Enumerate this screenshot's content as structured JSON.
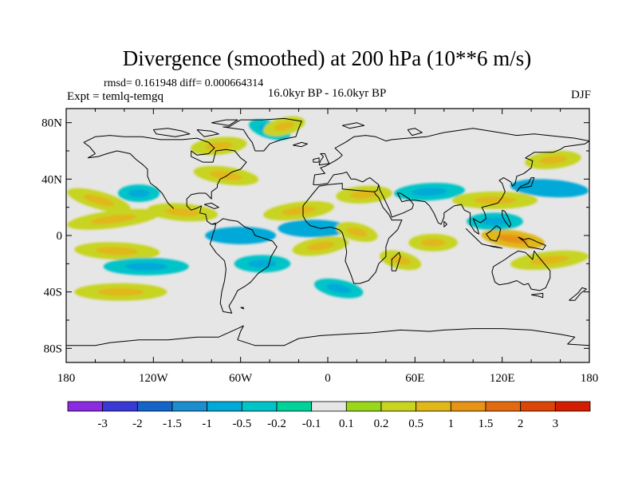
{
  "title": "Divergence (smoothed) at 200 hPa (10**6 m/s)",
  "stats": "rmsd= 0.161948 diff= 0.000664314",
  "left_label": "Expt = temlq-temgq",
  "center_label": "16.0kyr BP - 16.0kyr BP",
  "right_label": "DJF",
  "colors": {
    "background_field": "#e6e6e6",
    "coastline": "#000000",
    "palette": [
      "#8a2be2",
      "#3a39d6",
      "#1565c8",
      "#1c8ed0",
      "#00a9d8",
      "#00c4c8",
      "#00d39a",
      "#e6e6e6",
      "#9ad61a",
      "#c8d420",
      "#e0b81a",
      "#e69418",
      "#e26a10",
      "#dc4508",
      "#d41e02"
    ]
  },
  "map": {
    "projection": "cylindrical-equidistant",
    "lon_ticks": [
      "180",
      "120W",
      "60W",
      "0",
      "60E",
      "120E",
      "180"
    ],
    "lat_ticks": [
      "80N",
      "40N",
      "0",
      "40S",
      "80S"
    ]
  },
  "colorbar": {
    "labels": [
      "-3",
      "-2",
      "-1.5",
      "-1",
      "-0.5",
      "-0.2",
      "-0.1",
      "0.1",
      "0.2",
      "0.5",
      "1",
      "1.5",
      "2",
      "3"
    ]
  },
  "chart_data": {
    "type": "heatmap",
    "title": "Divergence (smoothed) at 200 hPa (10**6 m/s)",
    "units": "10**6 m/s",
    "season": "DJF",
    "experiment": "temlq-temgq",
    "period": "16.0kyr BP - 16.0kyr BP",
    "rmsd": 0.161948,
    "diff": 0.000664314,
    "x_range": [
      -180,
      180
    ],
    "y_range": [
      -90,
      90
    ],
    "contour_levels": [
      -3,
      -2,
      -1.5,
      -1,
      -0.5,
      -0.2,
      -0.1,
      0.1,
      0.2,
      0.5,
      1,
      1.5,
      2,
      3
    ],
    "regions": [
      {
        "lon": [
          -175,
          -140
        ],
        "lat": [
          30,
          20
        ],
        "value": 0.3
      },
      {
        "lon": [
          -140,
          -120
        ],
        "lat": [
          30,
          30
        ],
        "value": -0.3
      },
      {
        "lon": [
          -175,
          -120
        ],
        "lat": [
          8,
          15
        ],
        "value": 0.3
      },
      {
        "lon": [
          -170,
          -120
        ],
        "lat": [
          -10,
          -12
        ],
        "value": 0.3
      },
      {
        "lon": [
          -170,
          -115
        ],
        "lat": [
          -40,
          -40
        ],
        "value": 0.3
      },
      {
        "lon": [
          -150,
          -100
        ],
        "lat": [
          -22,
          -22
        ],
        "value": -0.3
      },
      {
        "lon": [
          -120,
          -80
        ],
        "lat": [
          18,
          15
        ],
        "value": 0.3
      },
      {
        "lon": [
          -88,
          -52
        ],
        "lat": [
          45,
          40
        ],
        "value": 0.3
      },
      {
        "lon": [
          -90,
          -60
        ],
        "lat": [
          62,
          65
        ],
        "value": 0.3
      },
      {
        "lon": [
          -50,
          -30
        ],
        "lat": [
          78,
          72
        ],
        "value": -0.3
      },
      {
        "lon": [
          -40,
          -20
        ],
        "lat": [
          75,
          80
        ],
        "value": 0.3
      },
      {
        "lon": [
          -80,
          -40
        ],
        "lat": [
          0,
          0
        ],
        "value": -0.5
      },
      {
        "lon": [
          -60,
          -30
        ],
        "lat": [
          -20,
          -20
        ],
        "value": -0.3
      },
      {
        "lon": [
          -40,
          0
        ],
        "lat": [
          15,
          20
        ],
        "value": 0.5
      },
      {
        "lon": [
          -30,
          10
        ],
        "lat": [
          5,
          5
        ],
        "value": -0.5
      },
      {
        "lon": [
          -20,
          10
        ],
        "lat": [
          -10,
          -5
        ],
        "value": 0.3
      },
      {
        "lon": [
          -5,
          20
        ],
        "lat": [
          -35,
          -40
        ],
        "value": -0.3
      },
      {
        "lon": [
          10,
          40
        ],
        "lat": [
          28,
          30
        ],
        "value": 0.3
      },
      {
        "lon": [
          10,
          30
        ],
        "lat": [
          5,
          0
        ],
        "value": 0.5
      },
      {
        "lon": [
          40,
          60
        ],
        "lat": [
          -15,
          -20
        ],
        "value": 0.3
      },
      {
        "lon": [
          60,
          85
        ],
        "lat": [
          -5,
          -5
        ],
        "value": 0.3
      },
      {
        "lon": [
          50,
          90
        ],
        "lat": [
          30,
          32
        ],
        "value": -0.2
      },
      {
        "lon": [
          90,
          140
        ],
        "lat": [
          25,
          25
        ],
        "value": 0.3
      },
      {
        "lon": [
          130,
          175
        ],
        "lat": [
          35,
          32
        ],
        "value": -0.5
      },
      {
        "lon": [
          110,
          145
        ],
        "lat": [
          0,
          -5
        ],
        "value": 0.8
      },
      {
        "lon": [
          100,
          130
        ],
        "lat": [
          10,
          10
        ],
        "value": -0.3
      },
      {
        "lon": [
          130,
          175
        ],
        "lat": [
          -20,
          -15
        ],
        "value": 0.3
      },
      {
        "lon": [
          140,
          170
        ],
        "lat": [
          52,
          55
        ],
        "value": 0.3
      }
    ]
  }
}
